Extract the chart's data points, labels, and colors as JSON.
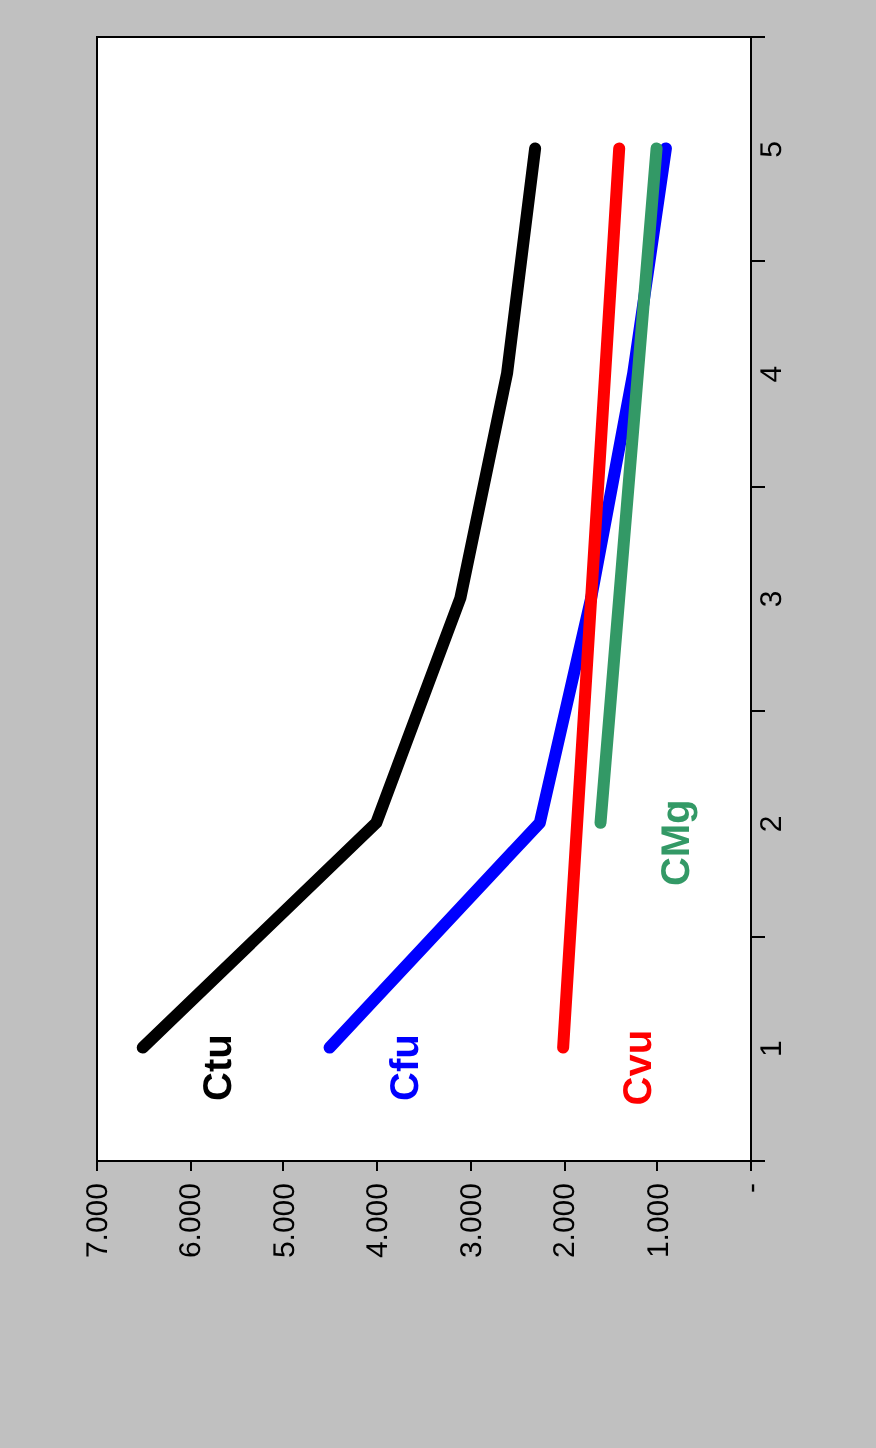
{
  "chart_data": {
    "type": "line",
    "orientation": "horizontal",
    "categories": [
      "5",
      "4",
      "3",
      "2",
      "1"
    ],
    "xlim": [
      7000,
      0
    ],
    "xticks": [
      {
        "value": 0,
        "label": "-"
      },
      {
        "value": 1000,
        "label": "1.000"
      },
      {
        "value": 2000,
        "label": "2.000"
      },
      {
        "value": 3000,
        "label": "3.000"
      },
      {
        "value": 4000,
        "label": "4.000"
      },
      {
        "value": 5000,
        "label": "5.000"
      },
      {
        "value": 6000,
        "label": "6.000"
      },
      {
        "value": 7000,
        "label": "7.000"
      }
    ],
    "series": [
      {
        "name": "Ctu",
        "color": "#000000",
        "values": [
          2300,
          2600,
          3100,
          4000,
          6500
        ]
      },
      {
        "name": "Cfu",
        "color": "#0000ff",
        "values": [
          900,
          1250,
          1700,
          2250,
          4500
        ]
      },
      {
        "name": "Cvu",
        "color": "#ff0000",
        "values": [
          1400,
          1550,
          1700,
          1850,
          2000
        ]
      },
      {
        "name": "CMg",
        "color": "#339966",
        "values": [
          1000,
          1200,
          1400,
          1600,
          null
        ]
      }
    ],
    "legend": false,
    "grid": false,
    "marker": "none",
    "line_style": "solid"
  }
}
